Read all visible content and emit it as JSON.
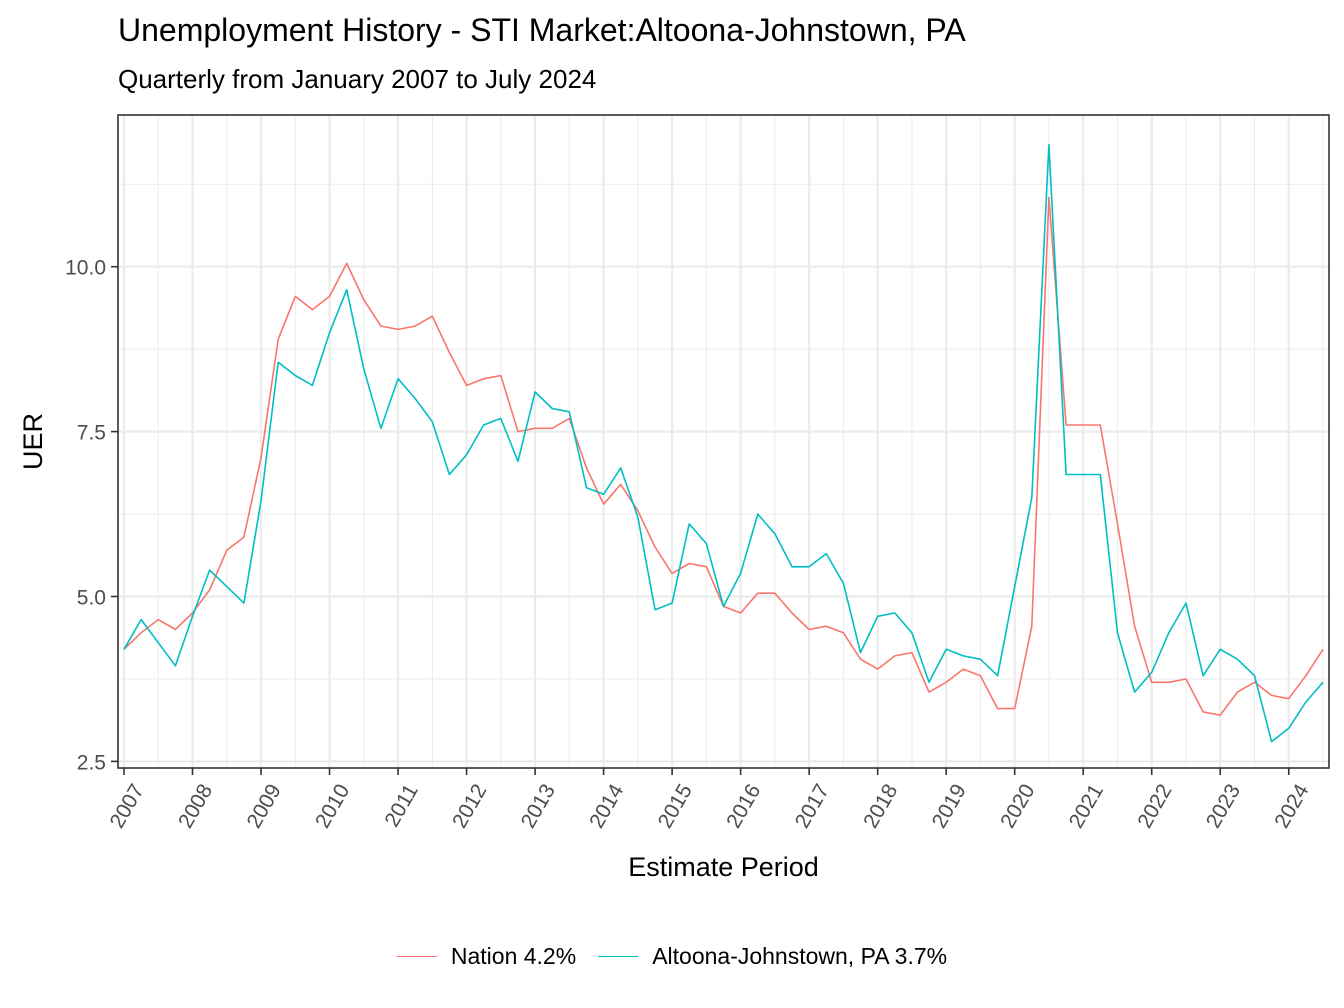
{
  "chart_data": {
    "type": "line",
    "title": "Unemployment History - STI Market:Altoona-Johnstown, PA",
    "subtitle": "Quarterly from January 2007 to July 2024",
    "xlabel": "Estimate Period",
    "ylabel": "UER",
    "x_ticks": [
      "2007",
      "2008",
      "2009",
      "2010",
      "2011",
      "2012",
      "2013",
      "2014",
      "2015",
      "2016",
      "2017",
      "2018",
      "2019",
      "2020",
      "2021",
      "2022",
      "2023",
      "2024"
    ],
    "y_ticks": [
      2.5,
      5.0,
      7.5,
      10.0
    ],
    "y_tick_labels": [
      "2.5",
      "5.0",
      "7.5",
      "10.0"
    ],
    "xlim": [
      "2007-01",
      "2024-07"
    ],
    "ylim": [
      2.4,
      12.3
    ],
    "x": [
      "2007-01",
      "2007-04",
      "2007-07",
      "2007-10",
      "2008-01",
      "2008-04",
      "2008-07",
      "2008-10",
      "2009-01",
      "2009-04",
      "2009-07",
      "2009-10",
      "2010-01",
      "2010-04",
      "2010-07",
      "2010-10",
      "2011-01",
      "2011-04",
      "2011-07",
      "2011-10",
      "2012-01",
      "2012-04",
      "2012-07",
      "2012-10",
      "2013-01",
      "2013-04",
      "2013-07",
      "2013-10",
      "2014-01",
      "2014-04",
      "2014-07",
      "2014-10",
      "2015-01",
      "2015-04",
      "2015-07",
      "2015-10",
      "2016-01",
      "2016-04",
      "2016-07",
      "2016-10",
      "2017-01",
      "2017-04",
      "2017-07",
      "2017-10",
      "2018-01",
      "2018-04",
      "2018-07",
      "2018-10",
      "2019-01",
      "2019-04",
      "2019-07",
      "2019-10",
      "2020-01",
      "2020-04",
      "2020-07",
      "2020-10",
      "2021-01",
      "2021-04",
      "2021-07",
      "2021-10",
      "2022-01",
      "2022-04",
      "2022-07",
      "2022-10",
      "2023-01",
      "2023-04",
      "2023-07",
      "2023-10",
      "2024-01",
      "2024-04",
      "2024-07"
    ],
    "series": [
      {
        "name": "Nation 4.2%",
        "color": "#F8766D",
        "values": [
          4.2,
          4.45,
          4.65,
          4.5,
          4.75,
          5.1,
          5.7,
          5.9,
          7.1,
          8.9,
          9.55,
          9.35,
          9.55,
          10.05,
          9.5,
          9.1,
          9.05,
          9.1,
          9.25,
          8.7,
          8.2,
          8.3,
          8.35,
          7.5,
          7.55,
          7.55,
          7.7,
          6.95,
          6.4,
          6.7,
          6.3,
          5.75,
          5.35,
          5.5,
          5.45,
          4.85,
          4.75,
          5.05,
          5.05,
          4.75,
          4.5,
          4.55,
          4.45,
          4.05,
          3.9,
          4.1,
          4.15,
          3.55,
          3.7,
          3.9,
          3.8,
          3.3,
          3.3,
          4.55,
          11.05,
          7.6,
          7.6,
          7.6,
          6.1,
          4.55,
          3.7,
          3.7,
          3.75,
          3.25,
          3.2,
          3.55,
          3.7,
          3.5,
          3.45,
          3.8,
          4.2
        ]
      },
      {
        "name": "Altoona-Johnstown, PA 3.7%",
        "color": "#00BFC4",
        "values": [
          4.2,
          4.65,
          4.3,
          3.95,
          4.7,
          5.4,
          5.15,
          4.9,
          6.45,
          8.55,
          8.35,
          8.2,
          9.0,
          9.65,
          8.45,
          7.55,
          8.3,
          8.0,
          7.65,
          6.85,
          7.15,
          7.6,
          7.7,
          7.05,
          8.1,
          7.85,
          7.8,
          6.65,
          6.55,
          6.95,
          6.2,
          4.8,
          4.9,
          6.1,
          5.8,
          4.85,
          5.35,
          6.25,
          5.95,
          5.45,
          5.45,
          5.65,
          5.2,
          4.15,
          4.7,
          4.75,
          4.45,
          3.7,
          4.2,
          4.1,
          4.05,
          3.8,
          5.15,
          6.5,
          11.85,
          6.85,
          6.85,
          6.85,
          4.45,
          3.55,
          3.85,
          4.45,
          4.9,
          3.8,
          4.2,
          4.05,
          3.8,
          2.8,
          3.0,
          3.4,
          3.7
        ]
      }
    ],
    "grid": true,
    "legend_position": "bottom"
  }
}
